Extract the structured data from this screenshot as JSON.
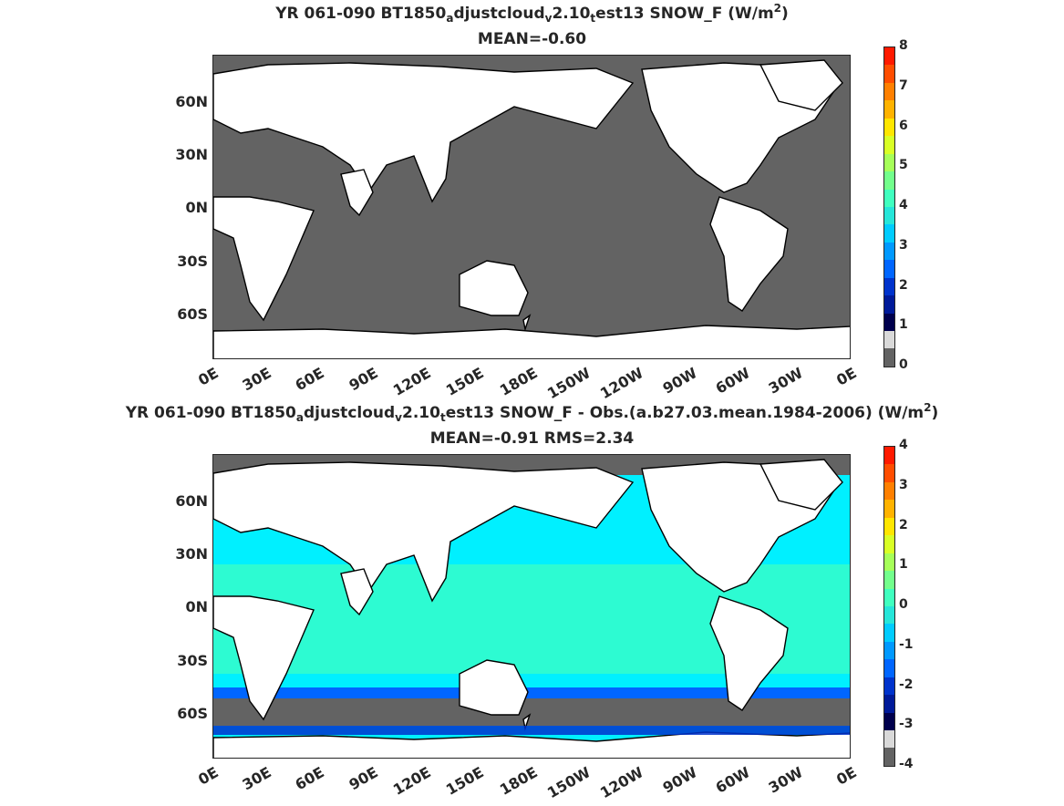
{
  "panels": [
    {
      "title_parts": [
        "YR 061-090 BT1850",
        "a",
        "djustcloud",
        "v",
        "2.10",
        "t",
        "est13  SNOW_F (W/m",
        "2",
        ")"
      ],
      "subtitle": "MEAN=-0.60",
      "ocean_color": "#636363",
      "colorbar_ticks": [
        "8",
        "7",
        "6",
        "5",
        "4",
        "3",
        "2",
        "1",
        "0"
      ],
      "colorbar_colors": [
        "#ff1a00",
        "#ff4d00",
        "#ff8000",
        "#ffb300",
        "#ffe600",
        "#d9ff26",
        "#a6ff59",
        "#73ff8c",
        "#40ffbf",
        "#26e6d9",
        "#00ccff",
        "#0099ff",
        "#0066ff",
        "#0033cc",
        "#001a99",
        "#00004d",
        "#d9d9d9",
        "#636363"
      ],
      "fields": []
    },
    {
      "title_parts": [
        "YR 061-090 BT1850",
        "a",
        "djustcloud",
        "v",
        "2.10",
        "t",
        "est13 SNOW_F - Obs.(a.b27.03.mean.1984-2006) (W/m",
        "2",
        ")"
      ],
      "subtitle": "MEAN=-0.91 RMS=2.34",
      "ocean_color": "#00f0ff",
      "colorbar_ticks": [
        "4",
        "3",
        "2",
        "1",
        "0",
        "-1",
        "-2",
        "-3",
        "-4"
      ],
      "colorbar_colors": [
        "#ff1a00",
        "#ff4d00",
        "#ff8000",
        "#ffb300",
        "#ffe600",
        "#d9ff26",
        "#a6ff59",
        "#73ff8c",
        "#40ffbf",
        "#26e6d9",
        "#00ccff",
        "#0099ff",
        "#0066ff",
        "#0033cc",
        "#001a99",
        "#00004d",
        "#d9d9d9",
        "#636363"
      ]
    }
  ],
  "ylabels": [
    "60N",
    "30N",
    "0N",
    "30S",
    "60S"
  ],
  "xlabels": [
    "0E",
    "30E",
    "60E",
    "90E",
    "120E",
    "150E",
    "180E",
    "150W",
    "120W",
    "90W",
    "60W",
    "30W",
    "0E"
  ]
}
